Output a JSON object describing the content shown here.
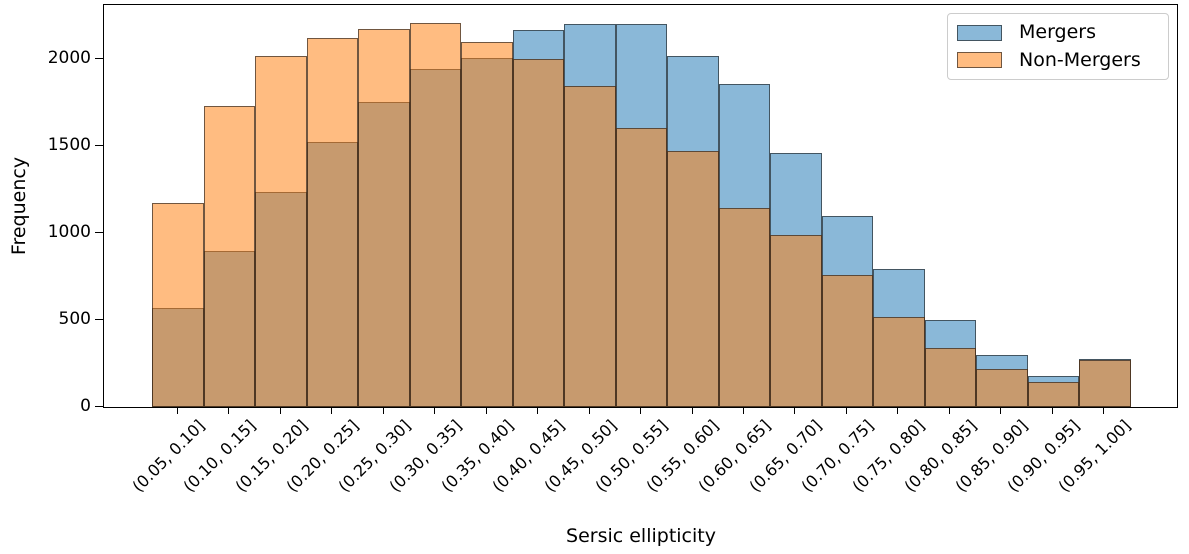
{
  "axes": {
    "xlabel": "Sersic ellipticity",
    "ylabel": "Frequency"
  },
  "legend": {
    "items": [
      {
        "label": "Mergers"
      },
      {
        "label": "Non-Mergers"
      }
    ]
  },
  "colors": {
    "mergers_base": "#1f77b4",
    "non_mergers_base": "#ff7f0e",
    "mergers_fill_on_white": "#8dbad9",
    "non_mergers_fill_on_white": "#fdba7c",
    "overlap_fill": "#c79c70",
    "bar_edge": "rgba(25,25,25,0.62)",
    "axis_color": "#000000",
    "legend_border": "#cccccc",
    "background": "#ffffff"
  },
  "chart_data": {
    "type": "bar",
    "subtype": "overlaid-translucent-histogram",
    "title": "",
    "xlabel": "Sersic ellipticity",
    "ylabel": "Frequency",
    "categories": [
      "(0.05, 0.10]",
      "(0.10, 0.15]",
      "(0.15, 0.20]",
      "(0.20, 0.25]",
      "(0.25, 0.30]",
      "(0.30, 0.35]",
      "(0.35, 0.40]",
      "(0.40, 0.45]",
      "(0.45, 0.50]",
      "(0.50, 0.55]",
      "(0.55, 0.60]",
      "(0.60, 0.65]",
      "(0.65, 0.70]",
      "(0.70, 0.75]",
      "(0.75, 0.80]",
      "(0.80, 0.85]",
      "(0.85, 0.90]",
      "(0.90, 0.95]",
      "(0.95, 1.00]"
    ],
    "series": [
      {
        "name": "Mergers",
        "color": "#1f77b4",
        "alpha": 0.52,
        "values": [
          570,
          895,
          1235,
          1520,
          1755,
          1945,
          2005,
          2165,
          2200,
          2200,
          2015,
          1855,
          1460,
          1100,
          795,
          500,
          300,
          179,
          275
        ]
      },
      {
        "name": "Non-Mergers",
        "color": "#ff7f0e",
        "alpha": 0.52,
        "values": [
          1170,
          1730,
          2015,
          2120,
          2170,
          2205,
          2100,
          2000,
          1845,
          1605,
          1470,
          1145,
          990,
          760,
          515,
          340,
          220,
          145,
          272
        ]
      }
    ],
    "ylim": [
      0,
      2310
    ],
    "yticks": [
      0,
      500,
      1000,
      1500,
      2000
    ],
    "grid": false,
    "legend_position": "upper-right",
    "x_tick_rotation": 45
  }
}
